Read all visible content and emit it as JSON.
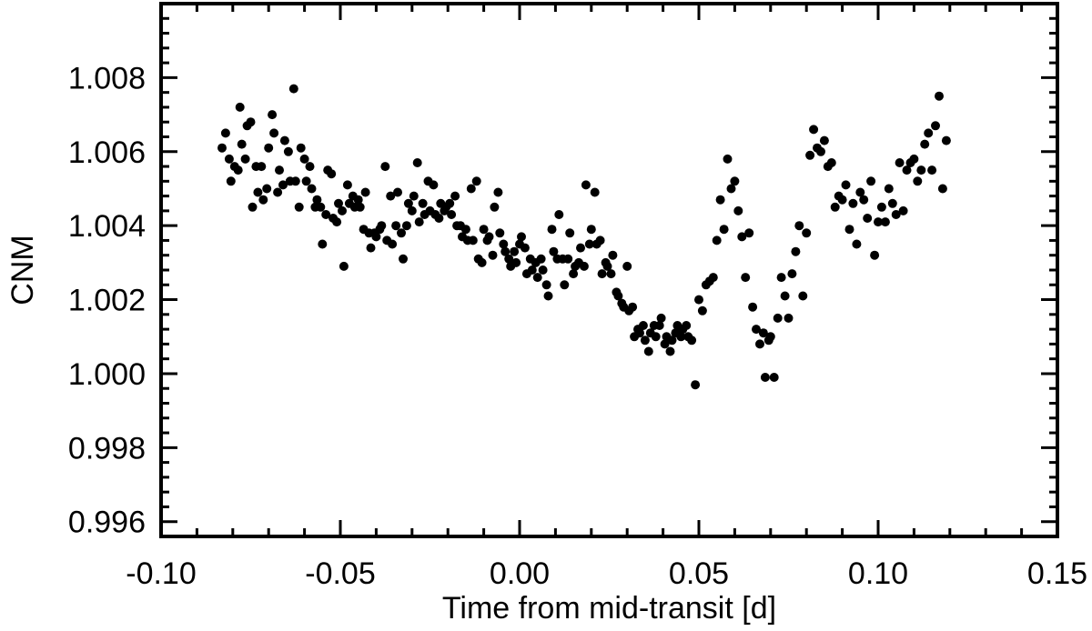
{
  "chart_data": {
    "type": "scatter",
    "title": "",
    "xlabel": "Time from mid-transit [d]",
    "ylabel": "CNM",
    "xlim": [
      -0.1,
      0.15
    ],
    "ylim": [
      0.9956,
      1.01
    ],
    "xticks": [
      -0.1,
      -0.05,
      0.0,
      0.05,
      0.1,
      0.15
    ],
    "xtick_labels": [
      "-0.10",
      "-0.05",
      "0.00",
      "0.05",
      "0.10",
      "0.15"
    ],
    "yticks": [
      0.996,
      0.998,
      1.0,
      1.002,
      1.004,
      1.006,
      1.008
    ],
    "ytick_labels": [
      "0.996",
      "0.998",
      "1.000",
      "1.002",
      "1.004",
      "1.006",
      "1.008"
    ],
    "grid": false,
    "marker_color": "#000000",
    "points": [
      [
        -0.083,
        1.0061
      ],
      [
        -0.082,
        1.0065
      ],
      [
        -0.081,
        1.0058
      ],
      [
        -0.0805,
        1.0052
      ],
      [
        -0.0795,
        1.0056
      ],
      [
        -0.0785,
        1.0055
      ],
      [
        -0.078,
        1.0072
      ],
      [
        -0.0775,
        1.0062
      ],
      [
        -0.0765,
        1.0058
      ],
      [
        -0.076,
        1.0067
      ],
      [
        -0.075,
        1.0068
      ],
      [
        -0.0745,
        1.0045
      ],
      [
        -0.0735,
        1.0056
      ],
      [
        -0.073,
        1.0049
      ],
      [
        -0.072,
        1.0056
      ],
      [
        -0.0715,
        1.0047
      ],
      [
        -0.0705,
        1.005
      ],
      [
        -0.07,
        1.0061
      ],
      [
        -0.069,
        1.007
      ],
      [
        -0.0685,
        1.0065
      ],
      [
        -0.0675,
        1.0049
      ],
      [
        -0.067,
        1.0055
      ],
      [
        -0.066,
        1.0051
      ],
      [
        -0.0655,
        1.0063
      ],
      [
        -0.0645,
        1.006
      ],
      [
        -0.064,
        1.0052
      ],
      [
        -0.063,
        1.0077
      ],
      [
        -0.0625,
        1.0052
      ],
      [
        -0.0615,
        1.0045
      ],
      [
        -0.061,
        1.0061
      ],
      [
        -0.06,
        1.0058
      ],
      [
        -0.0595,
        1.0052
      ],
      [
        -0.0585,
        1.0056
      ],
      [
        -0.058,
        1.005
      ],
      [
        -0.057,
        1.0045
      ],
      [
        -0.0565,
        1.0047
      ],
      [
        -0.0555,
        1.0045
      ],
      [
        -0.055,
        1.0035
      ],
      [
        -0.054,
        1.0043
      ],
      [
        -0.0535,
        1.0055
      ],
      [
        -0.0525,
        1.0054
      ],
      [
        -0.052,
        1.0042
      ],
      [
        -0.051,
        1.0041
      ],
      [
        -0.0505,
        1.0046
      ],
      [
        -0.0495,
        1.0044
      ],
      [
        -0.049,
        1.0029
      ],
      [
        -0.048,
        1.0051
      ],
      [
        -0.0475,
        1.0046
      ],
      [
        -0.0465,
        1.0048
      ],
      [
        -0.046,
        1.0045
      ],
      [
        -0.045,
        1.0047
      ],
      [
        -0.0445,
        1.0045
      ],
      [
        -0.0435,
        1.0039
      ],
      [
        -0.043,
        1.0049
      ],
      [
        -0.042,
        1.0038
      ],
      [
        -0.0415,
        1.0034
      ],
      [
        -0.0405,
        1.0038
      ],
      [
        -0.04,
        1.0037
      ],
      [
        -0.039,
        1.0039
      ],
      [
        -0.0385,
        1.004
      ],
      [
        -0.0375,
        1.0056
      ],
      [
        -0.037,
        1.0036
      ],
      [
        -0.036,
        1.0048
      ],
      [
        -0.0355,
        1.0035
      ],
      [
        -0.0345,
        1.004
      ],
      [
        -0.034,
        1.0049
      ],
      [
        -0.033,
        1.0038
      ],
      [
        -0.0325,
        1.0031
      ],
      [
        -0.0315,
        1.004
      ],
      [
        -0.031,
        1.0046
      ],
      [
        -0.03,
        1.0044
      ],
      [
        -0.0295,
        1.0048
      ],
      [
        -0.0285,
        1.0057
      ],
      [
        -0.028,
        1.0041
      ],
      [
        -0.027,
        1.0046
      ],
      [
        -0.0265,
        1.0043
      ],
      [
        -0.0255,
        1.0052
      ],
      [
        -0.025,
        1.0044
      ],
      [
        -0.024,
        1.0051
      ],
      [
        -0.0235,
        1.0043
      ],
      [
        -0.0225,
        1.0042
      ],
      [
        -0.022,
        1.0046
      ],
      [
        -0.021,
        1.0044
      ],
      [
        -0.0205,
        1.0045
      ],
      [
        -0.0195,
        1.0046
      ],
      [
        -0.019,
        1.0043
      ],
      [
        -0.018,
        1.0048
      ],
      [
        -0.0175,
        1.004
      ],
      [
        -0.0165,
        1.004
      ],
      [
        -0.016,
        1.0037
      ],
      [
        -0.015,
        1.0039
      ],
      [
        -0.0145,
        1.0036
      ],
      [
        -0.0135,
        1.005
      ],
      [
        -0.013,
        1.0036
      ],
      [
        -0.012,
        1.0052
      ],
      [
        -0.0115,
        1.0031
      ],
      [
        -0.0105,
        1.003
      ],
      [
        -0.01,
        1.0039
      ],
      [
        -0.009,
        1.0036
      ],
      [
        -0.0085,
        1.0037
      ],
      [
        -0.0075,
        1.0032
      ],
      [
        -0.007,
        1.0045
      ],
      [
        -0.006,
        1.0049
      ],
      [
        -0.0055,
        1.0038
      ],
      [
        -0.0045,
        1.0035
      ],
      [
        -0.004,
        1.0033
      ],
      [
        -0.003,
        1.0031
      ],
      [
        -0.0025,
        1.0029
      ],
      [
        -0.0015,
        1.0033
      ],
      [
        -0.001,
        1.003
      ],
      [
        0.0,
        1.0035
      ],
      [
        0.0005,
        1.0037
      ],
      [
        0.0015,
        1.0034
      ],
      [
        0.002,
        1.0027
      ],
      [
        0.003,
        1.0031
      ],
      [
        0.0035,
        1.0028
      ],
      [
        0.0045,
        1.003
      ],
      [
        0.005,
        1.0026
      ],
      [
        0.006,
        1.0031
      ],
      [
        0.0065,
        1.0028
      ],
      [
        0.0075,
        1.0024
      ],
      [
        0.008,
        1.0021
      ],
      [
        0.009,
        1.0039
      ],
      [
        0.0095,
        1.0033
      ],
      [
        0.0105,
        1.0031
      ],
      [
        0.011,
        1.0043
      ],
      [
        0.012,
        1.0031
      ],
      [
        0.0125,
        1.0024
      ],
      [
        0.0135,
        1.0031
      ],
      [
        0.014,
        1.0038
      ],
      [
        0.015,
        1.0027
      ],
      [
        0.0155,
        1.0029
      ],
      [
        0.0165,
        1.003
      ],
      [
        0.017,
        1.0034
      ],
      [
        0.018,
        1.0029
      ],
      [
        0.0185,
        1.0051
      ],
      [
        0.0195,
        1.0035
      ],
      [
        0.02,
        1.0039
      ],
      [
        0.021,
        1.0049
      ],
      [
        0.0215,
        1.0035
      ],
      [
        0.0225,
        1.0036
      ],
      [
        0.023,
        1.0027
      ],
      [
        0.024,
        1.003
      ],
      [
        0.0245,
        1.0029
      ],
      [
        0.0255,
        1.0027
      ],
      [
        0.026,
        1.0032
      ],
      [
        0.027,
        1.0022
      ],
      [
        0.0275,
        1.0021
      ],
      [
        0.0285,
        1.0019
      ],
      [
        0.029,
        1.0018
      ],
      [
        0.03,
        1.0029
      ],
      [
        0.0305,
        1.0017
      ],
      [
        0.0315,
        1.0018
      ],
      [
        0.032,
        1.001
      ],
      [
        0.033,
        1.0012
      ],
      [
        0.0335,
        1.0011
      ],
      [
        0.0345,
        1.0013
      ],
      [
        0.035,
        1.0009
      ],
      [
        0.036,
        1.0006
      ],
      [
        0.0365,
        1.0011
      ],
      [
        0.0375,
        1.0013
      ],
      [
        0.038,
        1.001
      ],
      [
        0.039,
        1.0013
      ],
      [
        0.0395,
        1.0015
      ],
      [
        0.0405,
        1.0008
      ],
      [
        0.041,
        1.001
      ],
      [
        0.042,
        1.0006
      ],
      [
        0.0425,
        1.0009
      ],
      [
        0.0435,
        1.0011
      ],
      [
        0.044,
        1.0013
      ],
      [
        0.045,
        1.001
      ],
      [
        0.0455,
        1.0012
      ],
      [
        0.0465,
        1.0013
      ],
      [
        0.047,
        1.001
      ],
      [
        0.048,
        1.0009
      ],
      [
        0.049,
        0.9997
      ],
      [
        0.05,
        1.002
      ],
      [
        0.051,
        1.0017
      ],
      [
        0.052,
        1.0024
      ],
      [
        0.053,
        1.0025
      ],
      [
        0.054,
        1.0026
      ],
      [
        0.055,
        1.0036
      ],
      [
        0.056,
        1.0047
      ],
      [
        0.057,
        1.0039
      ],
      [
        0.058,
        1.0058
      ],
      [
        0.059,
        1.005
      ],
      [
        0.06,
        1.0052
      ],
      [
        0.061,
        1.0044
      ],
      [
        0.062,
        1.0037
      ],
      [
        0.063,
        1.0026
      ],
      [
        0.064,
        1.0038
      ],
      [
        0.065,
        1.0018
      ],
      [
        0.066,
        1.0012
      ],
      [
        0.067,
        1.0008
      ],
      [
        0.068,
        1.0011
      ],
      [
        0.0685,
        0.9999
      ],
      [
        0.0695,
        1.0009
      ],
      [
        0.07,
        1.001
      ],
      [
        0.071,
        0.9999
      ],
      [
        0.072,
        1.0015
      ],
      [
        0.073,
        1.0026
      ],
      [
        0.074,
        1.0021
      ],
      [
        0.075,
        1.0015
      ],
      [
        0.076,
        1.0027
      ],
      [
        0.077,
        1.0033
      ],
      [
        0.078,
        1.004
      ],
      [
        0.079,
        1.0021
      ],
      [
        0.08,
        1.0038
      ],
      [
        0.081,
        1.0059
      ],
      [
        0.082,
        1.0066
      ],
      [
        0.083,
        1.0061
      ],
      [
        0.084,
        1.006
      ],
      [
        0.085,
        1.0063
      ],
      [
        0.086,
        1.0056
      ],
      [
        0.087,
        1.0057
      ],
      [
        0.088,
        1.0045
      ],
      [
        0.089,
        1.0048
      ],
      [
        0.09,
        1.0047
      ],
      [
        0.091,
        1.0051
      ],
      [
        0.092,
        1.0039
      ],
      [
        0.093,
        1.0046
      ],
      [
        0.094,
        1.0035
      ],
      [
        0.095,
        1.0049
      ],
      [
        0.096,
        1.0047
      ],
      [
        0.097,
        1.0042
      ],
      [
        0.098,
        1.0052
      ],
      [
        0.099,
        1.0032
      ],
      [
        0.1,
        1.0041
      ],
      [
        0.101,
        1.0045
      ],
      [
        0.102,
        1.0041
      ],
      [
        0.103,
        1.005
      ],
      [
        0.104,
        1.0046
      ],
      [
        0.105,
        1.0043
      ],
      [
        0.106,
        1.0057
      ],
      [
        0.107,
        1.0044
      ],
      [
        0.108,
        1.0055
      ],
      [
        0.109,
        1.0057
      ],
      [
        0.11,
        1.0058
      ],
      [
        0.111,
        1.0052
      ],
      [
        0.112,
        1.0055
      ],
      [
        0.113,
        1.0062
      ],
      [
        0.114,
        1.0065
      ],
      [
        0.115,
        1.0055
      ],
      [
        0.116,
        1.0067
      ],
      [
        0.117,
        1.0075
      ],
      [
        0.118,
        1.005
      ],
      [
        0.119,
        1.0063
      ]
    ]
  }
}
